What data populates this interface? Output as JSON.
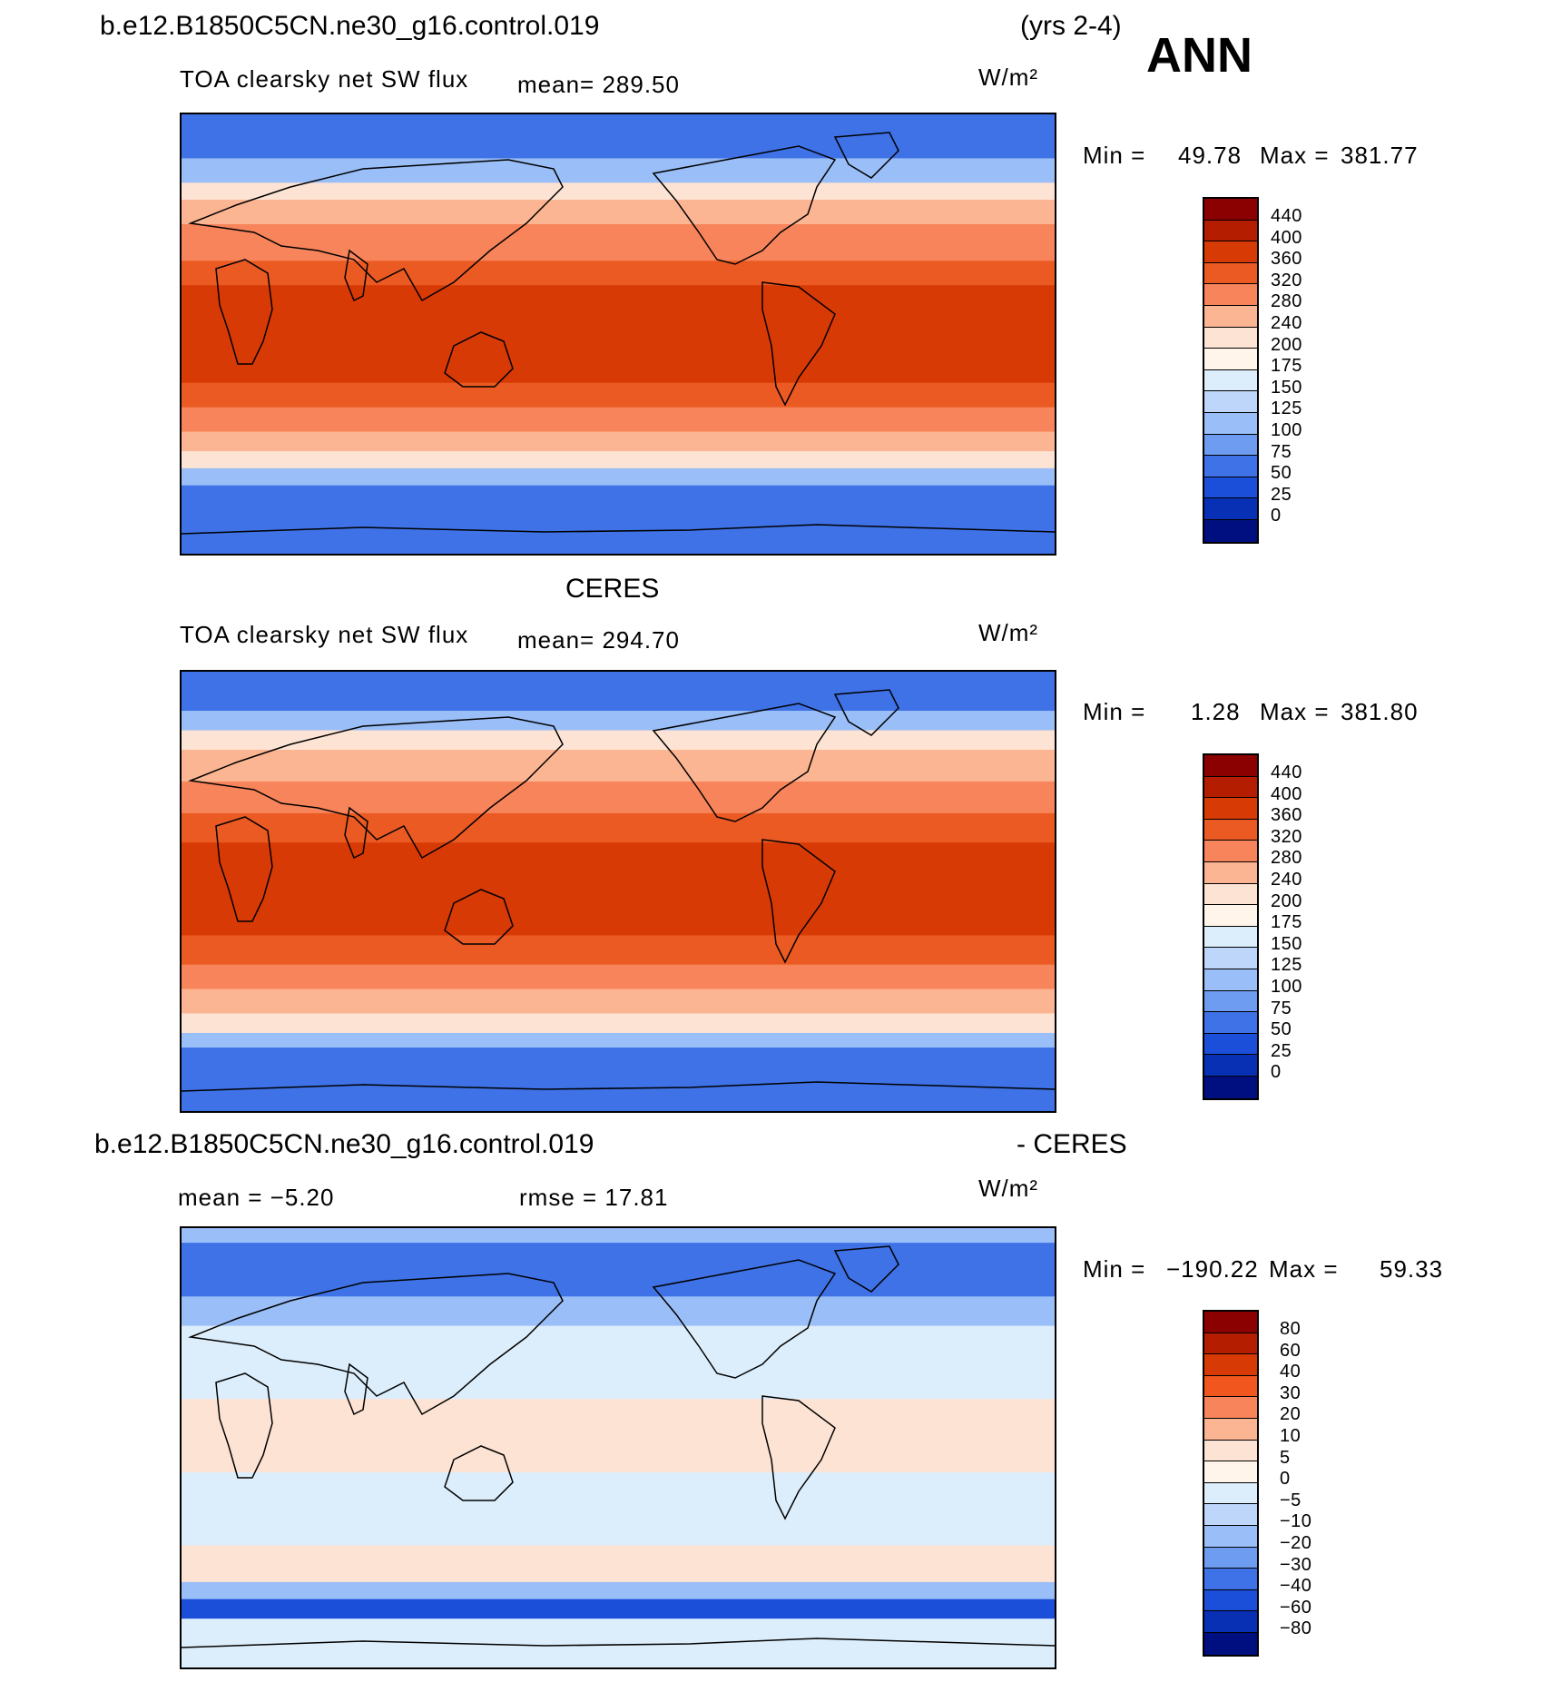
{
  "header": {
    "case_name": "b.e12.B1850C5CN.ne30_g16.control.019",
    "years": "(yrs 2-4)",
    "season": "ANN"
  },
  "panel1": {
    "title": "TOA clearsky net SW flux",
    "mean": "mean= 289.50",
    "units": "W/m²",
    "min_label": "Min =",
    "min_value": "49.78",
    "max_label": "Max =",
    "max_value": "381.77",
    "colorbar_labels": [
      "440",
      "400",
      "360",
      "320",
      "280",
      "240",
      "200",
      "175",
      "150",
      "125",
      "100",
      "75",
      "50",
      "25",
      "0"
    ],
    "colorbar_colors": [
      "#8b0000",
      "#b51d00",
      "#d83a06",
      "#ea5a22",
      "#f7845a",
      "#fcb592",
      "#fde3d3",
      "#fff5ea",
      "#dceefc",
      "#bed6fa",
      "#9abef7",
      "#6e9cf1",
      "#3e72e6",
      "#1b4ed9",
      "#0830b4",
      "#000f80"
    ],
    "map_plot": {
      "type": "zonal-bands",
      "bands": [
        {
          "from": 90,
          "to": 72,
          "color": "#3e72e6"
        },
        {
          "from": 72,
          "to": 62,
          "color": "#9abef7"
        },
        {
          "from": 62,
          "to": 55,
          "color": "#fde3d3"
        },
        {
          "from": 55,
          "to": 45,
          "color": "#fcb592"
        },
        {
          "from": 45,
          "to": 30,
          "color": "#f7845a"
        },
        {
          "from": 30,
          "to": 20,
          "color": "#ea5a22"
        },
        {
          "from": 20,
          "to": -20,
          "color": "#d83a06"
        },
        {
          "from": -20,
          "to": -30,
          "color": "#ea5a22"
        },
        {
          "from": -30,
          "to": -40,
          "color": "#f7845a"
        },
        {
          "from": -40,
          "to": -48,
          "color": "#fcb592"
        },
        {
          "from": -48,
          "to": -55,
          "color": "#fde3d3"
        },
        {
          "from": -55,
          "to": -62,
          "color": "#9abef7"
        },
        {
          "from": -62,
          "to": -90,
          "color": "#3e72e6"
        }
      ]
    }
  },
  "panel2": {
    "dataset": "CERES",
    "title": "TOA clearsky net SW flux",
    "mean": "mean= 294.70",
    "units": "W/m²",
    "min_label": "Min =",
    "min_value": "1.28",
    "max_label": "Max =",
    "max_value": "381.80",
    "colorbar_labels": [
      "440",
      "400",
      "360",
      "320",
      "280",
      "240",
      "200",
      "175",
      "150",
      "125",
      "100",
      "75",
      "50",
      "25",
      "0"
    ],
    "colorbar_colors": [
      "#8b0000",
      "#b51d00",
      "#d83a06",
      "#ea5a22",
      "#f7845a",
      "#fcb592",
      "#fde3d3",
      "#fff5ea",
      "#dceefc",
      "#bed6fa",
      "#9abef7",
      "#6e9cf1",
      "#3e72e6",
      "#1b4ed9",
      "#0830b4",
      "#000f80"
    ],
    "map_plot": {
      "type": "zonal-bands",
      "bands": [
        {
          "from": 90,
          "to": 74,
          "color": "#3e72e6"
        },
        {
          "from": 74,
          "to": 66,
          "color": "#9abef7"
        },
        {
          "from": 66,
          "to": 58,
          "color": "#fde3d3"
        },
        {
          "from": 58,
          "to": 45,
          "color": "#fcb592"
        },
        {
          "from": 45,
          "to": 32,
          "color": "#f7845a"
        },
        {
          "from": 32,
          "to": 20,
          "color": "#ea5a22"
        },
        {
          "from": 20,
          "to": -18,
          "color": "#d83a06"
        },
        {
          "from": -18,
          "to": -30,
          "color": "#ea5a22"
        },
        {
          "from": -30,
          "to": -40,
          "color": "#f7845a"
        },
        {
          "from": -40,
          "to": -50,
          "color": "#fcb592"
        },
        {
          "from": -50,
          "to": -58,
          "color": "#fde3d3"
        },
        {
          "from": -58,
          "to": -64,
          "color": "#9abef7"
        },
        {
          "from": -64,
          "to": -90,
          "color": "#3e72e6"
        }
      ]
    }
  },
  "panel3": {
    "title_left": "b.e12.B1850C5CN.ne30_g16.control.019",
    "title_right": "- CERES",
    "mean": "mean =   −5.20",
    "rmse": "rmse =   17.81",
    "units": "W/m²",
    "min_label": "Min =",
    "min_value": "−190.22",
    "max_label": "Max =",
    "max_value": "59.33",
    "colorbar_labels": [
      "80",
      "60",
      "40",
      "30",
      "20",
      "10",
      "5",
      "0",
      "−5",
      "−10",
      "−20",
      "−30",
      "−40",
      "−60",
      "−80"
    ],
    "colorbar_colors": [
      "#8b0000",
      "#b51d00",
      "#d83a06",
      "#f0561d",
      "#f7845a",
      "#fcb592",
      "#fde3d3",
      "#fff5ea",
      "#dceefc",
      "#bed6fa",
      "#9abef7",
      "#6e9cf1",
      "#3e72e6",
      "#1b4ed9",
      "#0830b4",
      "#000f80"
    ],
    "map_plot": {
      "type": "zonal-bands",
      "bands": [
        {
          "from": 90,
          "to": 84,
          "color": "#9abef7"
        },
        {
          "from": 84,
          "to": 62,
          "color": "#3e72e6"
        },
        {
          "from": 62,
          "to": 50,
          "color": "#9abef7"
        },
        {
          "from": 50,
          "to": 20,
          "color": "#dceefc"
        },
        {
          "from": 20,
          "to": -10,
          "color": "#fde3d3"
        },
        {
          "from": -10,
          "to": -40,
          "color": "#dceefc"
        },
        {
          "from": -40,
          "to": -55,
          "color": "#fde3d3"
        },
        {
          "from": -55,
          "to": -62,
          "color": "#9abef7"
        },
        {
          "from": -62,
          "to": -70,
          "color": "#1b4ed9"
        },
        {
          "from": -70,
          "to": -90,
          "color": "#dceefc"
        }
      ]
    }
  }
}
